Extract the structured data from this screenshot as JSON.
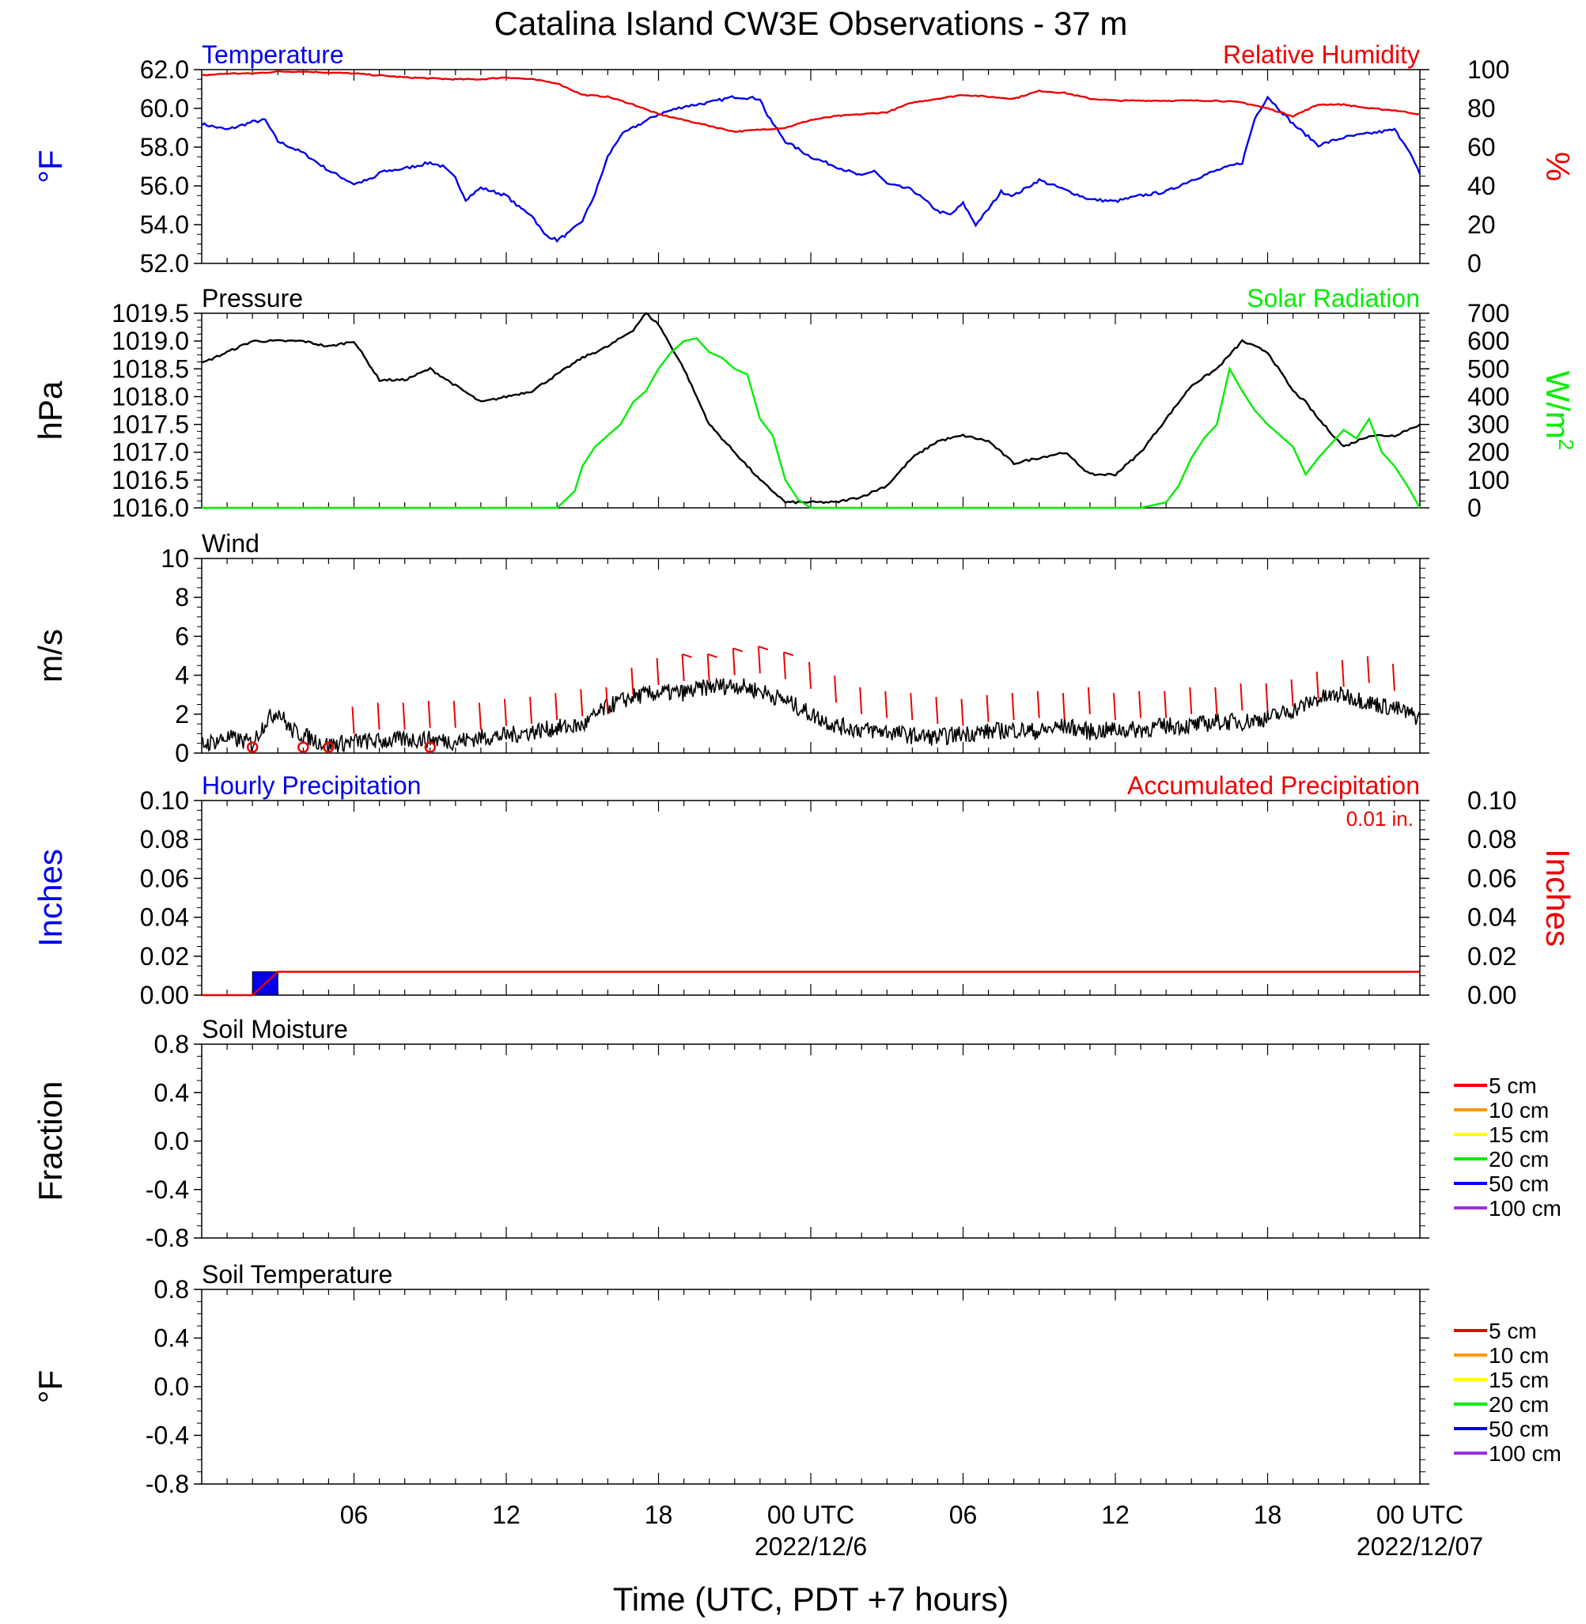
{
  "title": "Catalina Island CW3E Observations - 37 m",
  "xlabel": "Time (UTC, PDT +7 hours)",
  "x_ticks": [
    "06",
    "12",
    "18",
    "00 UTC",
    "06",
    "12",
    "18",
    "00 UTC"
  ],
  "x_dates": [
    "2022/12/6",
    "2022/12/07"
  ],
  "colors": {
    "blue": "#0000ee",
    "red": "#ee0000",
    "green": "#00ee00",
    "black": "#000000",
    "legend": [
      "#ee0000",
      "#ff9900",
      "#ffff00",
      "#00ee00",
      "#0000ee",
      "#9933dd"
    ]
  },
  "chart_data": [
    {
      "type": "line",
      "panel": "temperature-humidity",
      "left_title": "Temperature",
      "right_title": "Relative Humidity",
      "left_unit": "°F",
      "right_unit": "%",
      "left_ticks": [
        "62.0",
        "60.0",
        "58.0",
        "56.0",
        "54.0",
        "52.0"
      ],
      "right_ticks": [
        "100",
        "80",
        "60",
        "40",
        "20",
        "0"
      ],
      "left_ylim": [
        52,
        62
      ],
      "right_ylim": [
        0,
        100
      ],
      "x_hours_utc_from_start": true,
      "series": [
        {
          "name": "Temperature",
          "axis": "left",
          "x": [
            0,
            1,
            2,
            2.5,
            3,
            4,
            5,
            6,
            6.8,
            7,
            8,
            9,
            9.5,
            10,
            10.4,
            11,
            12,
            12.5,
            13,
            13.5,
            14,
            14.5,
            15,
            15.5,
            16,
            16.5,
            17,
            18,
            19,
            20,
            21,
            22,
            22.3,
            23,
            24,
            25,
            26,
            26.5,
            27,
            28,
            29,
            29.5,
            30,
            30.5,
            31,
            31.5,
            32,
            33,
            34,
            35,
            36,
            37,
            38,
            39,
            40,
            41,
            41.5,
            42,
            43,
            44,
            45,
            46,
            47,
            47.5,
            48
          ],
          "values": [
            59.2,
            58.9,
            59.3,
            59.4,
            58.3,
            57.7,
            56.8,
            56.1,
            56.4,
            56.7,
            56.9,
            57.2,
            57.0,
            56.4,
            55.3,
            55.9,
            55.5,
            54.9,
            54.5,
            53.5,
            53.2,
            53.6,
            54.2,
            55.6,
            57.5,
            58.6,
            59.0,
            59.7,
            60.1,
            60.3,
            60.6,
            60.5,
            59.6,
            58.3,
            57.5,
            57.0,
            56.5,
            56.8,
            56.1,
            55.8,
            54.7,
            54.5,
            55.1,
            54.0,
            54.8,
            55.7,
            55.5,
            56.3,
            55.8,
            55.3,
            55.2,
            55.5,
            55.7,
            56.3,
            56.8,
            57.2,
            59.5,
            60.6,
            59.2,
            58.1,
            58.5,
            58.7,
            58.9,
            58.0,
            56.6
          ]
        },
        {
          "name": "Relative Humidity",
          "axis": "right",
          "x": [
            0,
            1,
            2,
            3,
            4,
            5,
            6,
            7,
            8,
            9,
            10,
            11,
            12,
            13,
            14,
            15,
            16,
            17,
            18,
            19,
            20,
            21,
            22,
            23,
            24,
            25,
            26,
            27,
            28,
            29,
            30,
            31,
            32,
            33,
            34,
            35,
            36,
            37,
            38,
            39,
            40,
            41,
            42,
            43,
            44,
            45,
            46,
            47,
            48
          ],
          "values": [
            97,
            98,
            98,
            99,
            99,
            98.5,
            98,
            97,
            96,
            95.5,
            95,
            95,
            96,
            95,
            93,
            87,
            86,
            82,
            77,
            74,
            71,
            68,
            69,
            70,
            74,
            76,
            77,
            78,
            83,
            85,
            87,
            86,
            85,
            89,
            88,
            85,
            84,
            84,
            84,
            84,
            84,
            83,
            80,
            76,
            82,
            82,
            80,
            79,
            77
          ]
        }
      ]
    },
    {
      "type": "line",
      "panel": "pressure-solar",
      "left_title": "Pressure",
      "right_title": "Solar Radiation",
      "left_unit": "hPa",
      "right_unit": "W/m",
      "right_unit_sup": "2",
      "left_ticks": [
        "1019.5",
        "1019.0",
        "1018.5",
        "1018.0",
        "1017.5",
        "1017.0",
        "1016.5",
        "1016.0"
      ],
      "right_ticks": [
        "700",
        "600",
        "500",
        "400",
        "300",
        "200",
        "100",
        "0"
      ],
      "left_ylim": [
        1016.0,
        1019.5
      ],
      "right_ylim": [
        0,
        700
      ],
      "series": [
        {
          "name": "Pressure",
          "axis": "left",
          "x": [
            0,
            1,
            2,
            3,
            4,
            5,
            6,
            7,
            8,
            9,
            10,
            11,
            12,
            13,
            14,
            15,
            16,
            17,
            17.5,
            18,
            19,
            20,
            21,
            22,
            23,
            24,
            25,
            26,
            27,
            28,
            29,
            30,
            31,
            32,
            33,
            34,
            35,
            36,
            37,
            38,
            39,
            40,
            41,
            42,
            43,
            43.5,
            44,
            45,
            46,
            47,
            48
          ],
          "values": [
            1018.6,
            1018.8,
            1019.0,
            1019.0,
            1019.0,
            1018.9,
            1019.0,
            1018.3,
            1018.3,
            1018.5,
            1018.2,
            1017.9,
            1018.0,
            1018.1,
            1018.4,
            1018.7,
            1018.9,
            1019.2,
            1019.5,
            1019.3,
            1018.5,
            1017.5,
            1017.0,
            1016.5,
            1016.1,
            1016.1,
            1016.1,
            1016.2,
            1016.4,
            1016.9,
            1017.2,
            1017.3,
            1017.2,
            1016.8,
            1016.9,
            1017.0,
            1016.6,
            1016.6,
            1017.0,
            1017.6,
            1018.2,
            1018.5,
            1019.0,
            1018.8,
            1018.1,
            1017.9,
            1017.6,
            1017.1,
            1017.3,
            1017.3,
            1017.5
          ]
        },
        {
          "name": "Solar Radiation",
          "axis": "right",
          "x": [
            0,
            13,
            14,
            14.7,
            15,
            15.5,
            16,
            16.5,
            17,
            17.5,
            18,
            18.5,
            19,
            19.5,
            20,
            20.5,
            21,
            21.5,
            22,
            22.5,
            23,
            23.5,
            24,
            25,
            37,
            38,
            38.5,
            39,
            39.5,
            40,
            40.5,
            41,
            41.5,
            42,
            42.5,
            43,
            43.5,
            44,
            44.5,
            45,
            45.5,
            46,
            46.5,
            47,
            47.5,
            48
          ],
          "values": [
            0,
            0,
            0,
            60,
            150,
            220,
            260,
            300,
            380,
            420,
            500,
            560,
            600,
            610,
            560,
            540,
            500,
            480,
            320,
            260,
            100,
            30,
            0,
            0,
            0,
            20,
            80,
            180,
            250,
            300,
            500,
            420,
            350,
            300,
            260,
            220,
            120,
            180,
            230,
            280,
            250,
            320,
            200,
            150,
            80,
            0
          ]
        }
      ]
    },
    {
      "type": "line",
      "panel": "wind",
      "left_title": "Wind",
      "left_unit": "m/s",
      "left_ticks": [
        "10",
        "8",
        "6",
        "4",
        "2",
        "0"
      ],
      "left_ylim": [
        0,
        10
      ],
      "series": [
        {
          "name": "Wind",
          "axis": "left",
          "x": [
            0,
            1,
            2,
            2.5,
            3,
            3.5,
            4,
            5,
            6,
            7,
            8,
            9,
            10,
            11,
            12,
            13,
            14,
            15,
            16,
            17,
            18,
            19,
            20,
            21,
            22,
            23,
            24,
            25,
            26,
            27,
            28,
            29,
            30,
            31,
            32,
            33,
            34,
            35,
            36,
            37,
            38,
            39,
            40,
            41,
            42,
            43,
            44,
            45,
            46,
            47,
            48
          ],
          "values": [
            0.4,
            0.8,
            0.5,
            1.6,
            2.2,
            1.2,
            0.9,
            0.4,
            0.6,
            0.6,
            0.7,
            0.7,
            0.6,
            0.8,
            0.9,
            1.1,
            1.3,
            1.4,
            2.4,
            2.9,
            3.1,
            3.1,
            3.4,
            3.5,
            3.2,
            2.7,
            2.0,
            1.4,
            1.2,
            1.1,
            0.9,
            0.8,
            1.0,
            1.1,
            1.2,
            1.1,
            1.4,
            1.1,
            1.2,
            1.2,
            1.4,
            1.4,
            1.6,
            1.6,
            1.8,
            2.2,
            2.8,
            3.0,
            2.6,
            2.3,
            1.8
          ]
        }
      ],
      "barbs_x": [
        6,
        7,
        8,
        9,
        10,
        11,
        12,
        13,
        14,
        15,
        16,
        17,
        18,
        19,
        20,
        21,
        22,
        23,
        24,
        25,
        26,
        27,
        28,
        29,
        30,
        31,
        32,
        33,
        34,
        35,
        36,
        37,
        38,
        39,
        40,
        41,
        42,
        43,
        44,
        45,
        46,
        47
      ],
      "calm_circles_x": [
        2,
        4,
        5,
        9
      ]
    },
    {
      "type": "bar",
      "panel": "precipitation",
      "left_title": "Hourly Precipitation",
      "right_title": "Accumulated Precipitation",
      "total_label": "0.01 in.",
      "left_unit": "Inches",
      "right_unit": "Inches",
      "left_ticks": [
        "0.10",
        "0.08",
        "0.06",
        "0.04",
        "0.02",
        "0.00"
      ],
      "right_ticks": [
        "0.10",
        "0.08",
        "0.06",
        "0.04",
        "0.02",
        "0.00"
      ],
      "left_ylim": [
        0,
        0.1
      ],
      "right_ylim": [
        0,
        0.1
      ],
      "hourly_bars": [
        {
          "x_start": 2,
          "x_end": 3,
          "value": 0.012
        }
      ],
      "accumulated": {
        "x": [
          0,
          2,
          2.5,
          3,
          48
        ],
        "values": [
          0,
          0,
          0.006,
          0.012,
          0.012
        ]
      }
    },
    {
      "type": "line",
      "panel": "soil-moisture",
      "left_title": "Soil Moisture",
      "left_unit": "Fraction",
      "left_ticks": [
        "0.8",
        "0.4",
        "0.0",
        "-0.4",
        "-0.8"
      ],
      "left_ylim": [
        -1,
        1
      ],
      "legend": [
        "5 cm",
        "10 cm",
        "15 cm",
        "20 cm",
        "50 cm",
        "100 cm"
      ],
      "series": []
    },
    {
      "type": "line",
      "panel": "soil-temperature",
      "left_title": "Soil Temperature",
      "left_unit": "°F",
      "left_ticks": [
        "0.8",
        "0.4",
        "0.0",
        "-0.4",
        "-0.8"
      ],
      "left_ylim": [
        -1,
        1
      ],
      "legend": [
        "5 cm",
        "10 cm",
        "15 cm",
        "20 cm",
        "50 cm",
        "100 cm"
      ],
      "series": []
    }
  ]
}
